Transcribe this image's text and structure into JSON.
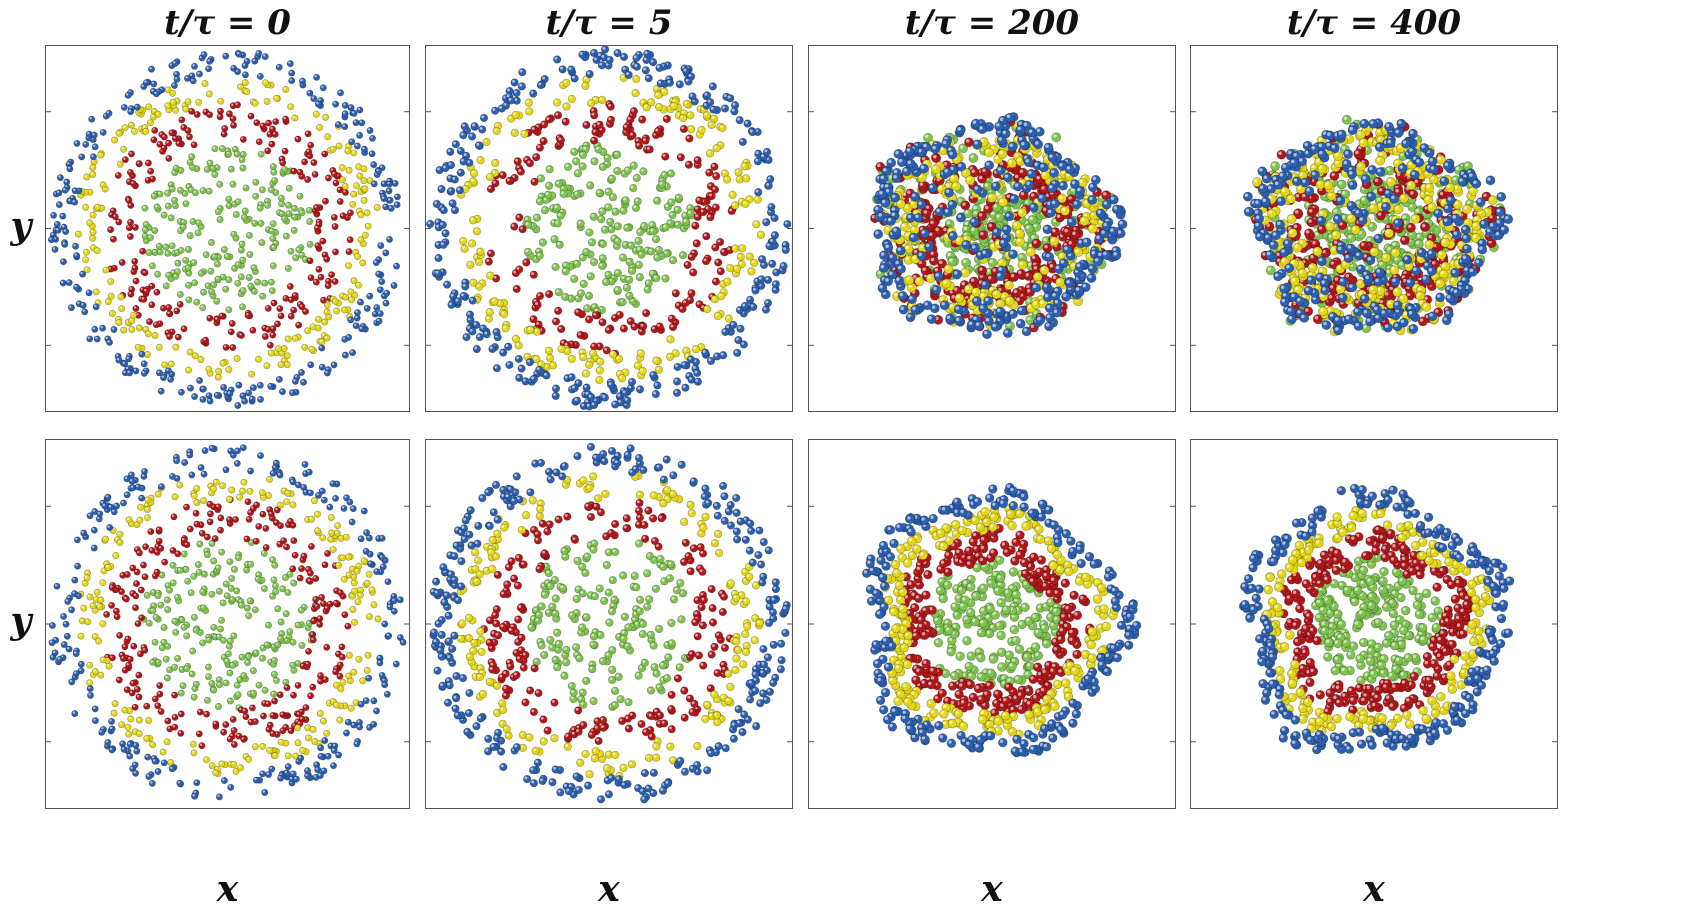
{
  "columns": [
    {
      "title": "t/τ = 0"
    },
    {
      "title": "t/τ = 5"
    },
    {
      "title": "t/τ = 200"
    },
    {
      "title": "t/τ = 400"
    }
  ],
  "axes": {
    "xlabel": "x",
    "ylabel": "y"
  },
  "colors": {
    "inner": "#7fc24f",
    "second": "#b0171a",
    "third": "#e2d617",
    "outer": "#2d5fae"
  },
  "rows": [
    {
      "row": "top",
      "panels": [
        {
          "state": "dispersed",
          "disorder": 0.0
        },
        {
          "state": "clustering",
          "disorder": 0.0
        },
        {
          "state": "mixed",
          "disorder": 0.8
        },
        {
          "state": "mixed",
          "disorder": 1.0
        }
      ]
    },
    {
      "row": "bottom",
      "panels": [
        {
          "state": "dispersed",
          "disorder": 0.0
        },
        {
          "state": "clustering",
          "disorder": 0.0
        },
        {
          "state": "sorted",
          "disorder": 0.0
        },
        {
          "state": "sorted",
          "disorder": 0.0
        }
      ]
    }
  ]
}
